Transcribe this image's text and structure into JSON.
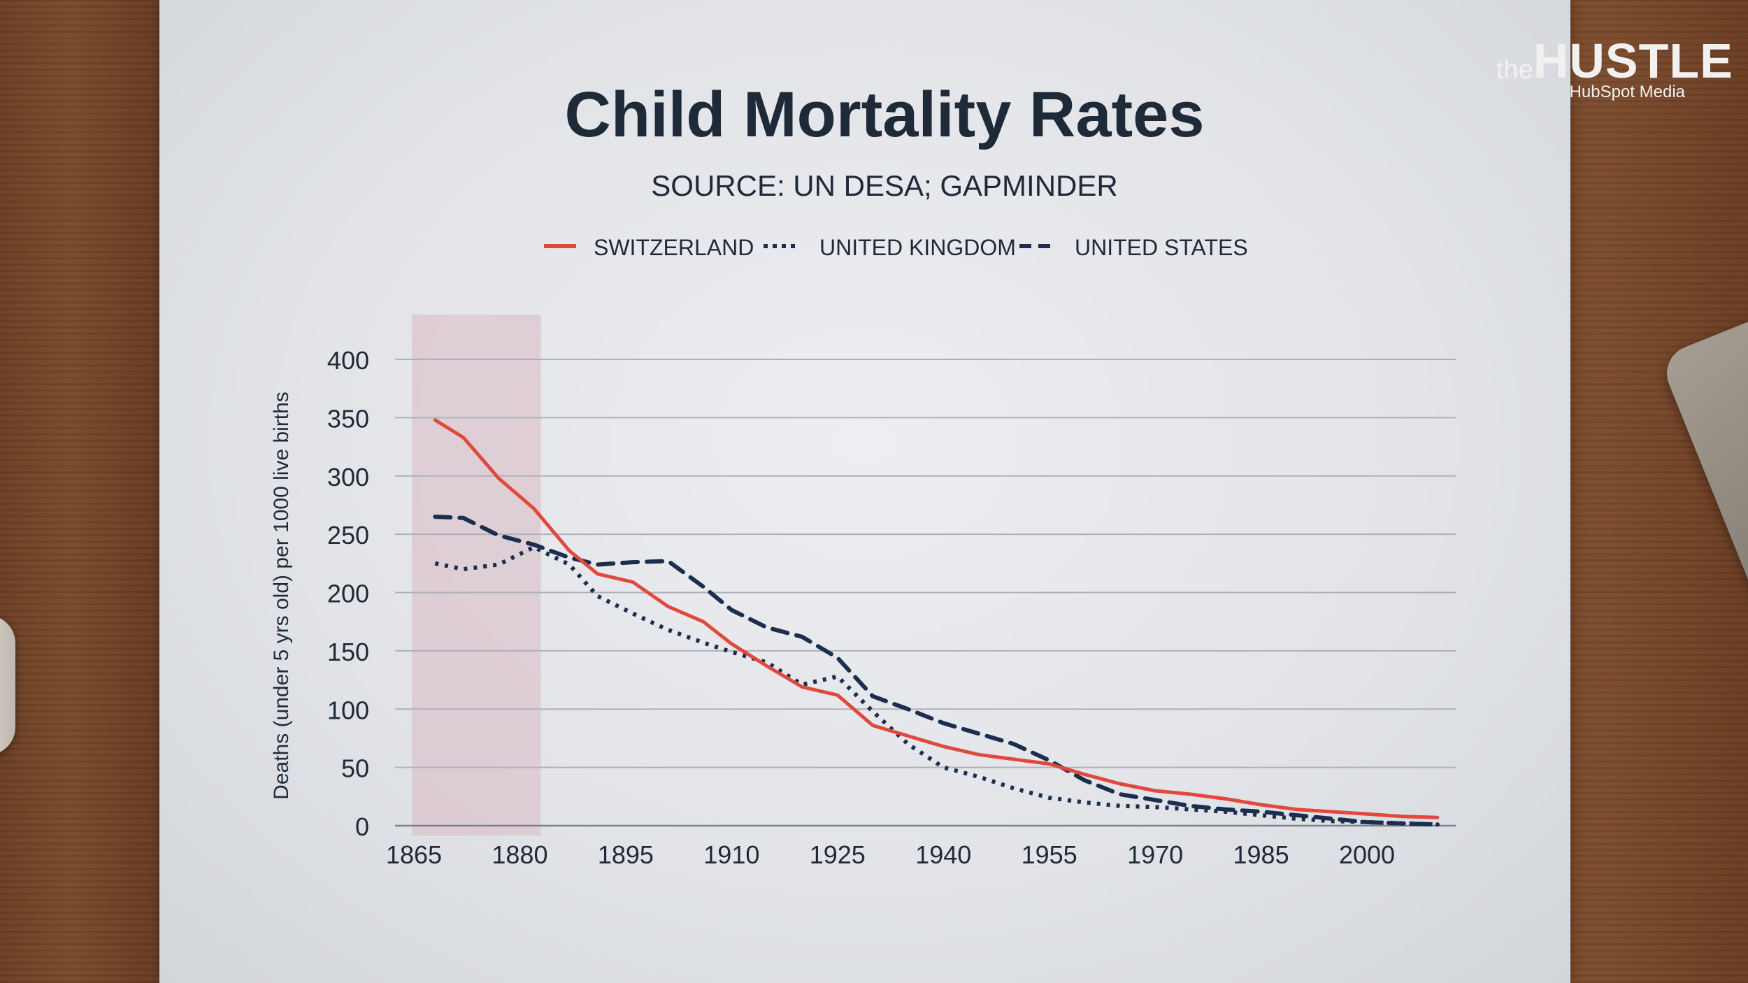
{
  "brand": {
    "the": "the",
    "hustle": "HUSTLE",
    "sub": "HubSpot Media"
  },
  "chart_data": {
    "type": "line",
    "title": "Child Mortality Rates",
    "subtitle": "SOURCE: UN DESA; GAPMINDER",
    "xlabel": "",
    "ylabel": "Deaths (under 5 yrs old) per 1000 live births",
    "xlim": [
      1865,
      2012
    ],
    "ylim": [
      0,
      400
    ],
    "xticks": [
      1865,
      1880,
      1895,
      1910,
      1925,
      1940,
      1955,
      1970,
      1985,
      2000
    ],
    "yticks": [
      0,
      50,
      100,
      150,
      200,
      250,
      300,
      350,
      400
    ],
    "grid": true,
    "legend": "top-center",
    "highlight_range": [
      1865,
      1882
    ],
    "colors": {
      "switzerland": "#e3483d",
      "navy": "#1c2e4e",
      "highlight": "#d9b9c3"
    },
    "series": [
      {
        "name": "SWITZERLAND",
        "style": "solid",
        "color": "#e3483d",
        "x": [
          1868,
          1872,
          1877,
          1882,
          1887,
          1891,
          1896,
          1901,
          1906,
          1910,
          1915,
          1920,
          1925,
          1930,
          1935,
          1940,
          1945,
          1950,
          1955,
          1960,
          1965,
          1970,
          1975,
          1980,
          1985,
          1990,
          1995,
          2000,
          2005,
          2010
        ],
        "values": [
          348,
          333,
          298,
          272,
          236,
          216,
          209,
          188,
          175,
          156,
          137,
          119,
          112,
          86,
          77,
          68,
          61,
          57,
          53,
          44,
          36,
          30,
          27,
          23,
          18,
          14,
          12,
          10,
          8,
          7
        ]
      },
      {
        "name": "UNITED KINGDOM",
        "style": "dotted",
        "color": "#1c2e4e",
        "x": [
          1868,
          1872,
          1877,
          1882,
          1887,
          1891,
          1896,
          1901,
          1906,
          1910,
          1915,
          1920,
          1925,
          1930,
          1935,
          1940,
          1945,
          1950,
          1955,
          1960,
          1965,
          1970,
          1975,
          1980,
          1985,
          1990,
          1995,
          2000,
          2005,
          2010
        ],
        "values": [
          225,
          220,
          224,
          239,
          224,
          197,
          182,
          168,
          157,
          149,
          140,
          121,
          128,
          98,
          70,
          50,
          42,
          32,
          24,
          20,
          17,
          16,
          14,
          12,
          9,
          6,
          4,
          3,
          2,
          1
        ]
      },
      {
        "name": "UNITED STATES",
        "style": "dashed",
        "color": "#1c2e4e",
        "x": [
          1868,
          1872,
          1877,
          1882,
          1887,
          1891,
          1896,
          1901,
          1906,
          1910,
          1915,
          1920,
          1925,
          1930,
          1935,
          1940,
          1945,
          1950,
          1955,
          1960,
          1965,
          1970,
          1975,
          1980,
          1985,
          1990,
          1995,
          2000,
          2005,
          2010
        ],
        "values": [
          265,
          264,
          249,
          241,
          230,
          224,
          226,
          227,
          205,
          185,
          170,
          162,
          144,
          111,
          100,
          88,
          79,
          70,
          56,
          39,
          27,
          22,
          17,
          14,
          12,
          9,
          6,
          3,
          2,
          1
        ]
      }
    ]
  }
}
